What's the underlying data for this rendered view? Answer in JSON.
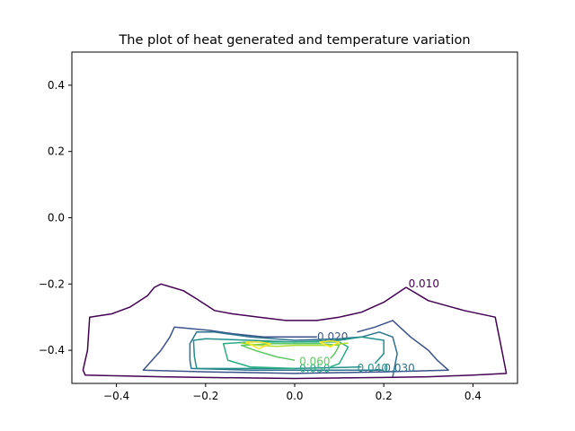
{
  "chart_data": {
    "type": "contour",
    "title": "The plot of heat generated and temperature variation",
    "xlabel": "",
    "ylabel": "",
    "xlim": [
      -0.5,
      0.5
    ],
    "ylim": [
      -0.5,
      0.5
    ],
    "grid": false,
    "x_ticks": [
      -0.4,
      -0.2,
      0.0,
      0.2,
      0.4
    ],
    "x_tick_labels": [
      "−0.4",
      "−0.2",
      "0.0",
      "0.2",
      "0.4"
    ],
    "y_ticks": [
      0.4,
      0.2,
      0.0,
      -0.2,
      -0.4
    ],
    "y_tick_labels": [
      "0.4",
      "0.2",
      "0.0",
      "−0.2",
      "−0.4"
    ],
    "levels": [
      {
        "value": 0.01,
        "label": "0.010",
        "color": "#440154",
        "label_at": [
          0.29,
          -0.2
        ],
        "points": [
          [
            0.25,
            -0.21
          ],
          [
            0.3,
            -0.25
          ],
          [
            0.38,
            -0.28
          ],
          [
            0.45,
            -0.3
          ],
          [
            0.465,
            -0.4
          ],
          [
            0.475,
            -0.47
          ],
          [
            0.4,
            -0.475
          ],
          [
            0.3,
            -0.48
          ],
          [
            0.2,
            -0.482
          ],
          [
            0.0,
            -0.485
          ],
          [
            -0.2,
            -0.482
          ],
          [
            -0.3,
            -0.48
          ],
          [
            -0.4,
            -0.477
          ],
          [
            -0.47,
            -0.475
          ],
          [
            -0.475,
            -0.46
          ],
          [
            -0.465,
            -0.4
          ],
          [
            -0.46,
            -0.3
          ],
          [
            -0.41,
            -0.29
          ],
          [
            -0.37,
            -0.27
          ],
          [
            -0.33,
            -0.235
          ],
          [
            -0.315,
            -0.21
          ],
          [
            -0.3,
            -0.2
          ],
          [
            -0.275,
            -0.21
          ],
          [
            -0.25,
            -0.22
          ],
          [
            -0.22,
            -0.245
          ],
          [
            -0.18,
            -0.28
          ],
          [
            -0.14,
            -0.29
          ],
          [
            -0.08,
            -0.3
          ],
          [
            -0.02,
            -0.31
          ],
          [
            0.05,
            -0.31
          ],
          [
            0.1,
            -0.3
          ],
          [
            0.15,
            -0.285
          ],
          [
            0.2,
            -0.255
          ],
          [
            0.25,
            -0.21
          ]
        ]
      },
      {
        "value": 0.02,
        "label": "0.020",
        "color": "#3b528b",
        "label_at": [
          0.085,
          -0.36
        ],
        "points": [
          [
            0.14,
            -0.345
          ],
          [
            0.18,
            -0.33
          ],
          [
            0.22,
            -0.31
          ],
          [
            0.26,
            -0.36
          ],
          [
            0.3,
            -0.4
          ],
          [
            0.32,
            -0.43
          ],
          [
            0.345,
            -0.46
          ],
          [
            0.2,
            -0.465
          ],
          [
            0.0,
            -0.47
          ],
          [
            -0.2,
            -0.465
          ],
          [
            -0.34,
            -0.46
          ],
          [
            -0.3,
            -0.4
          ],
          [
            -0.28,
            -0.36
          ],
          [
            -0.27,
            -0.33
          ],
          [
            -0.23,
            -0.335
          ],
          [
            -0.19,
            -0.34
          ],
          [
            -0.14,
            -0.35
          ],
          [
            -0.07,
            -0.36
          ],
          [
            0.0,
            -0.36
          ],
          [
            0.05,
            -0.36
          ]
        ]
      },
      {
        "value": 0.03,
        "label": "0.030",
        "color": "#2c728e",
        "label_at": [
          0.235,
          -0.455
        ],
        "points": [
          [
            0.22,
            -0.48
          ],
          [
            0.23,
            -0.41
          ],
          [
            0.22,
            -0.36
          ],
          [
            0.19,
            -0.345
          ],
          [
            0.15,
            -0.36
          ],
          [
            0.1,
            -0.365
          ],
          [
            0.0,
            -0.37
          ],
          [
            -0.1,
            -0.36
          ],
          [
            -0.18,
            -0.345
          ],
          [
            -0.22,
            -0.345
          ],
          [
            -0.235,
            -0.38
          ],
          [
            -0.235,
            -0.43
          ],
          [
            -0.232,
            -0.455
          ],
          [
            -0.1,
            -0.46
          ],
          [
            0.1,
            -0.46
          ],
          [
            0.2,
            -0.46
          ]
        ]
      },
      {
        "value": 0.04,
        "label": "0.040",
        "color": "#21918c",
        "label_at": [
          0.175,
          -0.455
        ],
        "points": [
          [
            0.18,
            -0.44
          ],
          [
            0.2,
            -0.41
          ],
          [
            0.2,
            -0.37
          ],
          [
            0.15,
            -0.36
          ],
          [
            0.1,
            -0.37
          ],
          [
            0.0,
            -0.375
          ],
          [
            -0.1,
            -0.37
          ],
          [
            -0.2,
            -0.365
          ],
          [
            -0.227,
            -0.37
          ],
          [
            -0.225,
            -0.42
          ],
          [
            -0.22,
            -0.455
          ],
          [
            -0.1,
            -0.455
          ],
          [
            0.0,
            -0.455
          ],
          [
            0.1,
            -0.452
          ],
          [
            0.15,
            -0.45
          ]
        ]
      },
      {
        "value": 0.05,
        "label": "0.050",
        "color": "#28ae80",
        "label_at": [
          0.045,
          -0.457
        ],
        "points": [
          [
            0.0,
            -0.455
          ],
          [
            -0.1,
            -0.45
          ],
          [
            -0.15,
            -0.43
          ],
          [
            -0.16,
            -0.38
          ],
          [
            -0.1,
            -0.375
          ],
          [
            0.0,
            -0.375
          ],
          [
            0.1,
            -0.375
          ],
          [
            0.12,
            -0.39
          ],
          [
            0.1,
            -0.44
          ],
          [
            0.08,
            -0.45
          ]
        ]
      },
      {
        "value": 0.06,
        "label": "0.060",
        "color": "#5ec962",
        "label_at": [
          0.045,
          -0.435
        ],
        "points": [
          [
            0.0,
            -0.43
          ],
          [
            -0.04,
            -0.42
          ],
          [
            -0.09,
            -0.4
          ],
          [
            -0.12,
            -0.385
          ],
          [
            -0.05,
            -0.38
          ],
          [
            0.0,
            -0.38
          ],
          [
            0.06,
            -0.38
          ],
          [
            0.1,
            -0.385
          ],
          [
            0.09,
            -0.41
          ],
          [
            0.08,
            -0.425
          ]
        ]
      },
      {
        "value": 0.07,
        "label": "",
        "color": "#addc30",
        "label_at": [],
        "points": [
          [
            -0.12,
            -0.378
          ],
          [
            -0.08,
            -0.385
          ],
          [
            -0.04,
            -0.388
          ],
          [
            0.0,
            -0.385
          ],
          [
            0.04,
            -0.385
          ],
          [
            0.08,
            -0.385
          ],
          [
            0.12,
            -0.378
          ]
        ]
      },
      {
        "value": 0.08,
        "label": "",
        "color": "#fde725",
        "label_at": [],
        "islands": [
          [
            [
              -0.11,
              -0.375
            ],
            [
              -0.08,
              -0.395
            ],
            [
              -0.055,
              -0.38
            ],
            [
              -0.08,
              -0.375
            ],
            [
              -0.11,
              -0.375
            ]
          ],
          [
            [
              0.055,
              -0.375
            ],
            [
              0.08,
              -0.39
            ],
            [
              0.1,
              -0.375
            ],
            [
              0.08,
              -0.372
            ],
            [
              0.055,
              -0.375
            ]
          ]
        ]
      }
    ]
  }
}
